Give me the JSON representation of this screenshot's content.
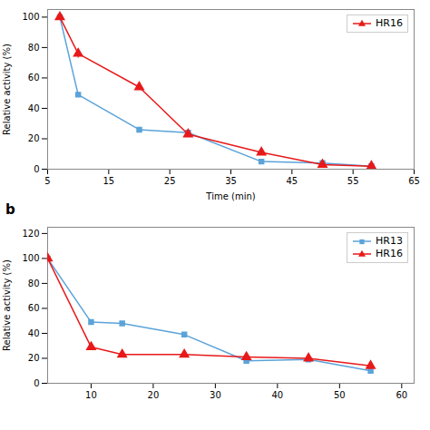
{
  "chart_data": [
    {
      "type": "line",
      "x": [
        7,
        10,
        20,
        28,
        40,
        50,
        58
      ],
      "series": [
        {
          "color": "#5ba3d9",
          "marker": "square",
          "values": [
            100,
            49,
            26,
            24,
            5,
            4,
            2
          ],
          "yerr": [
            0.5,
            1.5,
            1.5,
            1.2,
            0.8,
            0.5,
            0.3
          ]
        },
        {
          "name": "HR16",
          "color": "#e8191a",
          "marker": "triangle",
          "values": [
            100,
            76,
            54,
            23,
            11,
            3,
            2
          ],
          "yerr": [
            0.5,
            3,
            2,
            1.5,
            1.2,
            0.5,
            0.3
          ]
        }
      ],
      "xlim": [
        5,
        65
      ],
      "xticks": [
        5,
        15,
        25,
        35,
        45,
        55,
        65
      ],
      "ylim": [
        0,
        105
      ],
      "yticks": [
        0,
        20,
        40,
        60,
        80,
        100
      ],
      "xlabel": "Time (min)",
      "ylabel": "Relative activity (%)",
      "legend": "upper right"
    },
    {
      "type": "line",
      "title": "b",
      "x": [
        3,
        10,
        15,
        25,
        35,
        45,
        55
      ],
      "series": [
        {
          "name": "HR13",
          "color": "#5ba3d9",
          "marker": "square",
          "values": [
            100,
            49,
            48,
            39,
            18,
            19,
            10
          ]
        },
        {
          "name": "HR16",
          "color": "#e8191a",
          "marker": "triangle",
          "values": [
            100,
            29,
            23,
            23,
            21,
            20,
            14
          ]
        }
      ],
      "xlim": [
        3,
        62
      ],
      "xticks": [
        10,
        20,
        30,
        40,
        50,
        60
      ],
      "ylim": [
        0,
        125
      ],
      "yticks": [
        0,
        20,
        40,
        60,
        80,
        100,
        120
      ],
      "ylabel": "Relative activity (%)",
      "legend": "upper right"
    }
  ]
}
